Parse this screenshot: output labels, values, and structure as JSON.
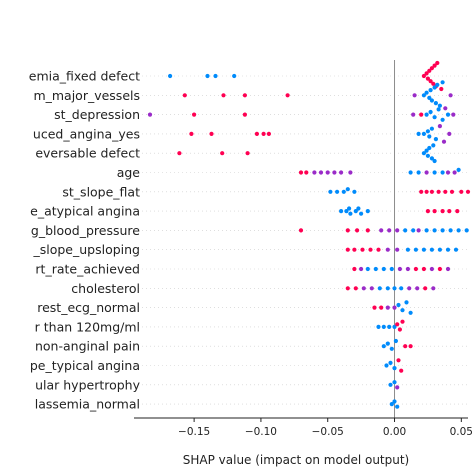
{
  "colors": {
    "high": "#ff0052",
    "low": "#008bfb",
    "mid": "#9a2bc8",
    "zero_line": "#8c8c8c",
    "axis": "#222222"
  },
  "chart_data": {
    "type": "scatter",
    "subtype": "shap-beeswarm",
    "title": "",
    "xlabel": "SHAP value (impact on model output)",
    "ylabel": "",
    "xlim": [
      -0.195,
      0.055
    ],
    "xticks": [
      -0.15,
      -0.1,
      -0.05,
      0.0,
      0.05
    ],
    "xtick_labels": [
      "−0.15",
      "−0.10",
      "−0.05",
      "0.00",
      "0.05"
    ],
    "zero_line": 0,
    "features": [
      "emia_fixed defect",
      "m_major_vessels",
      "st_depression",
      "uced_angina_yes",
      "eversable defect",
      "age",
      "st_slope_flat",
      "e_atypical angina",
      "g_blood_pressure",
      "_slope_upsloping",
      "rt_rate_achieved",
      "cholesterol",
      "rest_ecg_normal",
      "r than 120mg/ml",
      "non-anginal pain",
      "pe_typical angina",
      "ular hypertrophy",
      "lassemia_normal"
    ],
    "points": [
      [
        {
          "x": -0.168,
          "c": "low"
        },
        {
          "x": -0.14,
          "c": "low"
        },
        {
          "x": -0.134,
          "c": "low"
        },
        {
          "x": -0.12,
          "c": "low"
        },
        {
          "x": 0.022,
          "c": "high"
        },
        {
          "x": 0.024,
          "c": "high"
        },
        {
          "x": 0.026,
          "c": "high"
        },
        {
          "x": 0.028,
          "c": "high"
        },
        {
          "x": 0.03,
          "c": "high"
        },
        {
          "x": 0.032,
          "c": "high"
        },
        {
          "x": 0.027,
          "c": "high"
        },
        {
          "x": 0.025,
          "c": "high"
        },
        {
          "x": 0.029,
          "c": "high"
        },
        {
          "x": 0.031,
          "c": "high"
        },
        {
          "x": 0.035,
          "c": "high"
        }
      ],
      [
        {
          "x": -0.157,
          "c": "high"
        },
        {
          "x": -0.128,
          "c": "high"
        },
        {
          "x": -0.112,
          "c": "high"
        },
        {
          "x": -0.08,
          "c": "high"
        },
        {
          "x": 0.015,
          "c": "mid"
        },
        {
          "x": 0.022,
          "c": "low"
        },
        {
          "x": 0.024,
          "c": "low"
        },
        {
          "x": 0.026,
          "c": "low"
        },
        {
          "x": 0.028,
          "c": "low"
        },
        {
          "x": 0.03,
          "c": "low"
        },
        {
          "x": 0.032,
          "c": "low"
        },
        {
          "x": 0.034,
          "c": "low"
        },
        {
          "x": 0.036,
          "c": "low"
        },
        {
          "x": 0.038,
          "c": "mid"
        },
        {
          "x": 0.042,
          "c": "mid"
        },
        {
          "x": 0.027,
          "c": "low"
        },
        {
          "x": 0.031,
          "c": "low"
        }
      ],
      [
        {
          "x": -0.183,
          "c": "mid"
        },
        {
          "x": -0.15,
          "c": "high"
        },
        {
          "x": -0.112,
          "c": "high"
        },
        {
          "x": 0.014,
          "c": "mid"
        },
        {
          "x": 0.02,
          "c": "high"
        },
        {
          "x": 0.024,
          "c": "low"
        },
        {
          "x": 0.027,
          "c": "low"
        },
        {
          "x": 0.03,
          "c": "low"
        },
        {
          "x": 0.033,
          "c": "low"
        },
        {
          "x": 0.036,
          "c": "low"
        },
        {
          "x": 0.04,
          "c": "low"
        },
        {
          "x": 0.044,
          "c": "mid"
        }
      ],
      [
        {
          "x": -0.152,
          "c": "high"
        },
        {
          "x": -0.137,
          "c": "high"
        },
        {
          "x": -0.103,
          "c": "high"
        },
        {
          "x": -0.098,
          "c": "high"
        },
        {
          "x": -0.094,
          "c": "high"
        },
        {
          "x": 0.018,
          "c": "low"
        },
        {
          "x": 0.022,
          "c": "low"
        },
        {
          "x": 0.025,
          "c": "low"
        },
        {
          "x": 0.028,
          "c": "low"
        },
        {
          "x": 0.031,
          "c": "low"
        },
        {
          "x": 0.034,
          "c": "mid"
        },
        {
          "x": 0.037,
          "c": "mid"
        },
        {
          "x": 0.041,
          "c": "mid"
        },
        {
          "x": 0.026,
          "c": "low"
        }
      ],
      [
        {
          "x": -0.161,
          "c": "high"
        },
        {
          "x": -0.129,
          "c": "high"
        },
        {
          "x": -0.11,
          "c": "high"
        },
        {
          "x": 0.022,
          "c": "low"
        },
        {
          "x": 0.024,
          "c": "low"
        },
        {
          "x": 0.026,
          "c": "low"
        },
        {
          "x": 0.028,
          "c": "low"
        },
        {
          "x": 0.03,
          "c": "low"
        },
        {
          "x": 0.025,
          "c": "low"
        },
        {
          "x": 0.029,
          "c": "low"
        }
      ],
      [
        {
          "x": -0.07,
          "c": "high"
        },
        {
          "x": -0.066,
          "c": "high"
        },
        {
          "x": -0.06,
          "c": "mid"
        },
        {
          "x": -0.055,
          "c": "mid"
        },
        {
          "x": -0.05,
          "c": "mid"
        },
        {
          "x": -0.045,
          "c": "mid"
        },
        {
          "x": -0.04,
          "c": "mid"
        },
        {
          "x": -0.033,
          "c": "mid"
        },
        {
          "x": 0.012,
          "c": "low"
        },
        {
          "x": 0.018,
          "c": "low"
        },
        {
          "x": 0.024,
          "c": "mid"
        },
        {
          "x": 0.03,
          "c": "low"
        },
        {
          "x": 0.036,
          "c": "low"
        },
        {
          "x": 0.04,
          "c": "mid"
        },
        {
          "x": 0.045,
          "c": "mid"
        },
        {
          "x": 0.048,
          "c": "low"
        }
      ],
      [
        {
          "x": -0.048,
          "c": "low"
        },
        {
          "x": -0.043,
          "c": "low"
        },
        {
          "x": -0.038,
          "c": "low"
        },
        {
          "x": -0.035,
          "c": "low"
        },
        {
          "x": -0.03,
          "c": "low"
        },
        {
          "x": 0.02,
          "c": "high"
        },
        {
          "x": 0.024,
          "c": "high"
        },
        {
          "x": 0.028,
          "c": "high"
        },
        {
          "x": 0.033,
          "c": "high"
        },
        {
          "x": 0.038,
          "c": "high"
        },
        {
          "x": 0.043,
          "c": "high"
        },
        {
          "x": 0.05,
          "c": "high"
        },
        {
          "x": 0.055,
          "c": "high"
        }
      ],
      [
        {
          "x": -0.04,
          "c": "low"
        },
        {
          "x": -0.036,
          "c": "low"
        },
        {
          "x": -0.033,
          "c": "low"
        },
        {
          "x": -0.029,
          "c": "low"
        },
        {
          "x": -0.025,
          "c": "low"
        },
        {
          "x": -0.02,
          "c": "low"
        },
        {
          "x": -0.034,
          "c": "low"
        },
        {
          "x": -0.027,
          "c": "low"
        },
        {
          "x": 0.025,
          "c": "high"
        },
        {
          "x": 0.03,
          "c": "high"
        },
        {
          "x": 0.036,
          "c": "high"
        },
        {
          "x": 0.041,
          "c": "high"
        },
        {
          "x": 0.047,
          "c": "high"
        }
      ],
      [
        {
          "x": -0.07,
          "c": "high"
        },
        {
          "x": -0.035,
          "c": "high"
        },
        {
          "x": -0.028,
          "c": "high"
        },
        {
          "x": -0.02,
          "c": "high"
        },
        {
          "x": -0.01,
          "c": "mid"
        },
        {
          "x": -0.004,
          "c": "mid"
        },
        {
          "x": 0.002,
          "c": "mid"
        },
        {
          "x": 0.008,
          "c": "low"
        },
        {
          "x": 0.014,
          "c": "low"
        },
        {
          "x": 0.018,
          "c": "mid"
        },
        {
          "x": 0.024,
          "c": "low"
        },
        {
          "x": 0.03,
          "c": "low"
        },
        {
          "x": 0.036,
          "c": "low"
        },
        {
          "x": 0.042,
          "c": "low"
        },
        {
          "x": 0.048,
          "c": "low"
        },
        {
          "x": 0.054,
          "c": "low"
        }
      ],
      [
        {
          "x": -0.035,
          "c": "high"
        },
        {
          "x": -0.03,
          "c": "high"
        },
        {
          "x": -0.024,
          "c": "high"
        },
        {
          "x": -0.018,
          "c": "high"
        },
        {
          "x": -0.012,
          "c": "high"
        },
        {
          "x": -0.005,
          "c": "mid"
        },
        {
          "x": 0.002,
          "c": "mid"
        },
        {
          "x": 0.01,
          "c": "low"
        },
        {
          "x": 0.016,
          "c": "low"
        },
        {
          "x": 0.022,
          "c": "low"
        },
        {
          "x": 0.028,
          "c": "low"
        },
        {
          "x": 0.034,
          "c": "low"
        },
        {
          "x": 0.04,
          "c": "low"
        },
        {
          "x": 0.046,
          "c": "low"
        }
      ],
      [
        {
          "x": -0.03,
          "c": "high"
        },
        {
          "x": -0.025,
          "c": "mid"
        },
        {
          "x": -0.02,
          "c": "low"
        },
        {
          "x": -0.014,
          "c": "low"
        },
        {
          "x": -0.008,
          "c": "low"
        },
        {
          "x": -0.002,
          "c": "low"
        },
        {
          "x": 0.004,
          "c": "mid"
        },
        {
          "x": 0.01,
          "c": "mid"
        },
        {
          "x": 0.016,
          "c": "high"
        },
        {
          "x": 0.022,
          "c": "high"
        },
        {
          "x": 0.028,
          "c": "mid"
        },
        {
          "x": 0.034,
          "c": "high"
        },
        {
          "x": 0.04,
          "c": "mid"
        }
      ],
      [
        {
          "x": -0.035,
          "c": "high"
        },
        {
          "x": -0.029,
          "c": "high"
        },
        {
          "x": -0.023,
          "c": "mid"
        },
        {
          "x": -0.017,
          "c": "mid"
        },
        {
          "x": -0.011,
          "c": "low"
        },
        {
          "x": -0.005,
          "c": "low"
        },
        {
          "x": 0.0,
          "c": "low"
        },
        {
          "x": 0.005,
          "c": "low"
        },
        {
          "x": 0.011,
          "c": "mid"
        },
        {
          "x": 0.017,
          "c": "mid"
        },
        {
          "x": 0.023,
          "c": "high"
        },
        {
          "x": 0.029,
          "c": "mid"
        }
      ],
      [
        {
          "x": -0.015,
          "c": "high"
        },
        {
          "x": -0.01,
          "c": "high"
        },
        {
          "x": -0.005,
          "c": "mid"
        },
        {
          "x": 0.0,
          "c": "mid"
        },
        {
          "x": 0.003,
          "c": "low"
        },
        {
          "x": 0.006,
          "c": "low"
        },
        {
          "x": 0.009,
          "c": "low"
        },
        {
          "x": 0.012,
          "c": "low"
        }
      ],
      [
        {
          "x": -0.012,
          "c": "low"
        },
        {
          "x": -0.008,
          "c": "low"
        },
        {
          "x": -0.004,
          "c": "low"
        },
        {
          "x": 0.0,
          "c": "low"
        },
        {
          "x": 0.002,
          "c": "high"
        },
        {
          "x": 0.004,
          "c": "high"
        },
        {
          "x": 0.006,
          "c": "high"
        }
      ],
      [
        {
          "x": -0.008,
          "c": "low"
        },
        {
          "x": -0.005,
          "c": "low"
        },
        {
          "x": -0.002,
          "c": "low"
        },
        {
          "x": 0.001,
          "c": "low"
        },
        {
          "x": 0.008,
          "c": "high"
        },
        {
          "x": 0.012,
          "c": "high"
        }
      ],
      [
        {
          "x": -0.006,
          "c": "low"
        },
        {
          "x": -0.003,
          "c": "low"
        },
        {
          "x": 0.0,
          "c": "low"
        },
        {
          "x": 0.003,
          "c": "high"
        },
        {
          "x": 0.005,
          "c": "high"
        }
      ],
      [
        {
          "x": -0.003,
          "c": "low"
        },
        {
          "x": 0.0,
          "c": "low"
        },
        {
          "x": 0.002,
          "c": "mid"
        }
      ],
      [
        {
          "x": -0.002,
          "c": "low"
        },
        {
          "x": 0.0,
          "c": "low"
        },
        {
          "x": 0.002,
          "c": "low"
        }
      ]
    ]
  }
}
